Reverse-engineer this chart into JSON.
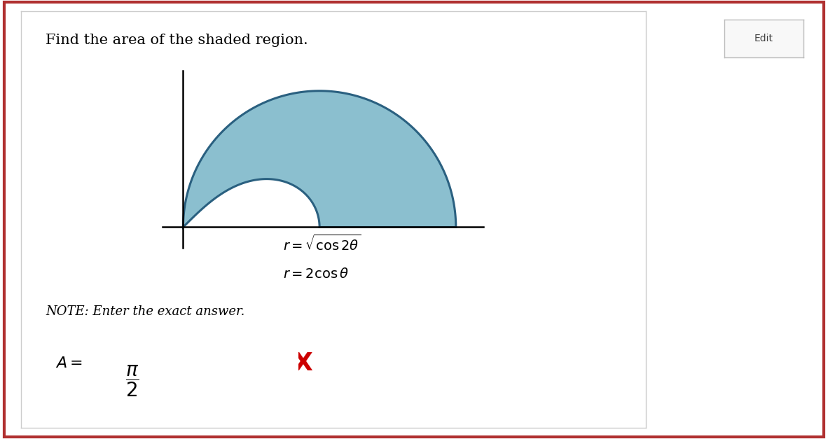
{
  "title": "Find the area of the shaded region.",
  "title_fontsize": 15,
  "eq1": "r = \\sqrt{\\cos 2\\theta}",
  "eq2": "r = 2\\cos\\theta",
  "note": "NOTE: Enter the exact answer.",
  "background_color": "#ffffff",
  "outer_border_color": "#b03030",
  "inner_border_color": "#cccccc",
  "shaded_fill": "#8bbfcf",
  "shaded_edge": "#2a6080",
  "curve_linewidth": 2.2,
  "axis_linewidth": 1.8,
  "edit_button_text": "Edit",
  "edit_button_color": "#f8f8f8",
  "edit_button_border": "#bbbbbb",
  "ans_box_color": "#444444",
  "red_x_color": "#cc0000"
}
